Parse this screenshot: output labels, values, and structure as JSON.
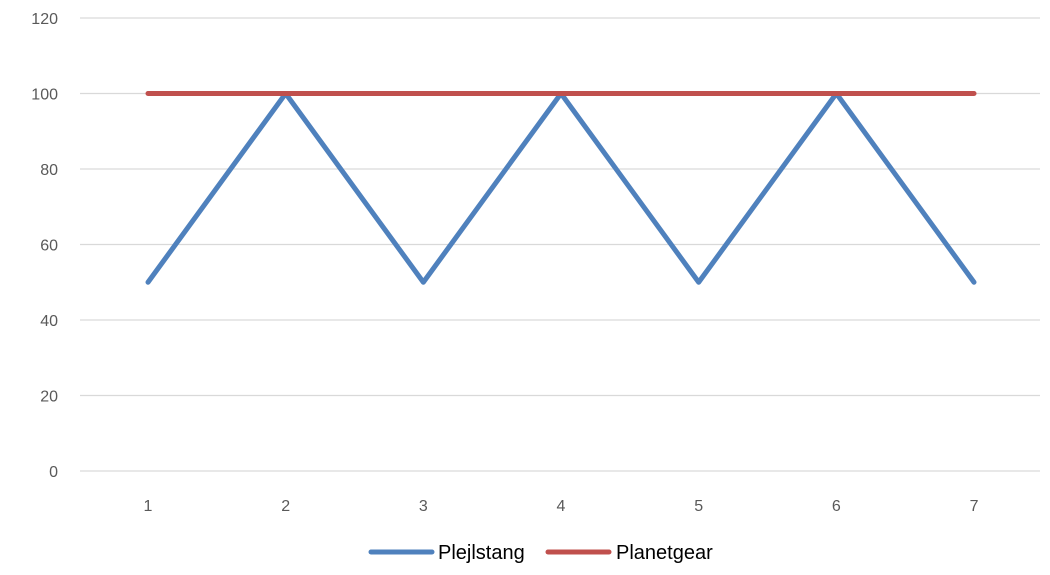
{
  "chart_data": {
    "type": "line",
    "x": [
      1,
      2,
      3,
      4,
      5,
      6,
      7
    ],
    "categories": [
      "1",
      "2",
      "3",
      "4",
      "5",
      "6",
      "7"
    ],
    "series": [
      {
        "name": "Plejlstang",
        "values": [
          50,
          100,
          50,
          100,
          50,
          100,
          50
        ],
        "color": "#4f81bd"
      },
      {
        "name": "Planetgear",
        "values": [
          100,
          100,
          100,
          100,
          100,
          100,
          100
        ],
        "color": "#c0504d"
      }
    ],
    "ylim": [
      0,
      120
    ],
    "yticks": [
      0,
      20,
      40,
      60,
      80,
      100,
      120
    ],
    "grid": true,
    "legend_position": "bottom"
  }
}
